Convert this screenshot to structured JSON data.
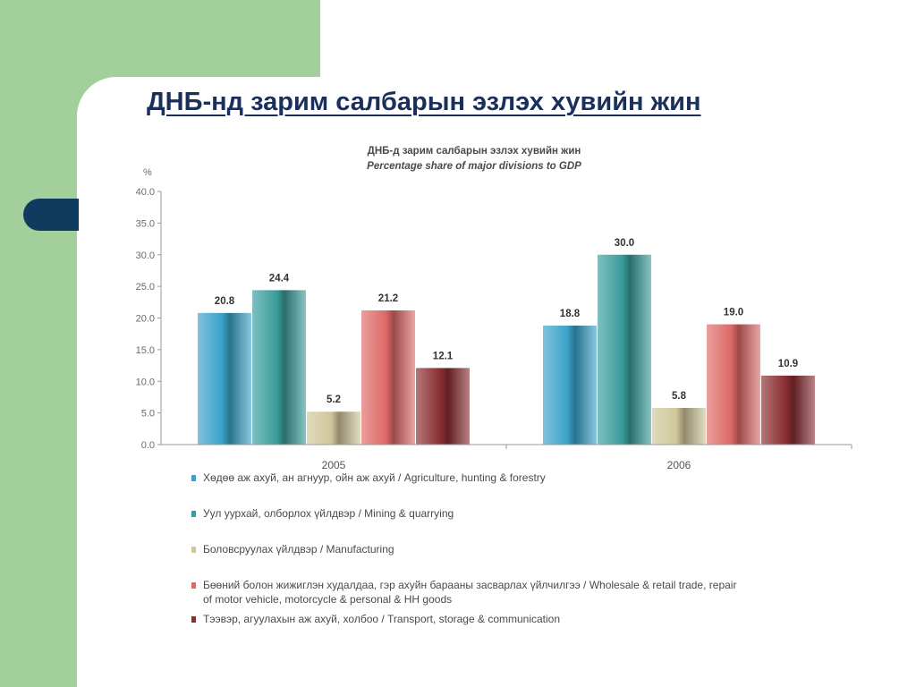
{
  "slide": {
    "title": "ДНБ-нд зарим салбарын эзлэх хувийн жин",
    "accent_colors": {
      "panel": "#a3cf9d",
      "tab": "#0e3b5e",
      "title": "#1b2f5b"
    }
  },
  "chart_data": {
    "type": "bar",
    "title": "ДНБ-д зарим салбарын эзлэх хувийн жин",
    "subtitle": "Percentage share of major divisions to GDP",
    "ylabel": "%",
    "ylim": [
      0,
      40
    ],
    "yticks": [
      "0.0",
      "5.0",
      "10.0",
      "15.0",
      "20.0",
      "25.0",
      "30.0",
      "35.0",
      "40.0"
    ],
    "categories": [
      "2005",
      "2006"
    ],
    "legend_position": "bottom",
    "grid": false,
    "series": [
      {
        "name": "Хөдөө аж ахуй, ан агнуур, ойн аж ахуй  / Agriculture, hunting & forestry",
        "values": [
          20.8,
          18.8
        ],
        "labels": [
          "20.8",
          "18.8"
        ],
        "color": "#3aa3c9"
      },
      {
        "name": "Уул уурхай, олборлох үйлдвэр / Mining & quarrying",
        "values": [
          24.4,
          30.0
        ],
        "labels": [
          "24.4",
          "30.0"
        ],
        "color": "#3a9d9c"
      },
      {
        "name": "Боловсруулах үйлдвэр / Manufacturing",
        "values": [
          5.2,
          5.8
        ],
        "labels": [
          "5.2",
          "5.8"
        ],
        "color": "#cfc79a"
      },
      {
        "name_lines": [
          "Бөөний болон жижиглэн худалдаа, гэр ахуйн барааны засварлах үйлчилгээ / Wholesale & retail trade, repair",
          "of motor vehicle, motorcycle & personal & HH goods"
        ],
        "values": [
          21.2,
          19.0
        ],
        "labels": [
          "21.2",
          "19.0"
        ],
        "color": "#de6a68"
      },
      {
        "name": "Тээвэр, агуулахын аж ахуй, холбоо /  Transport, storage & communication",
        "values": [
          12.1,
          10.9
        ],
        "labels": [
          "12.1",
          "10.9"
        ],
        "color": "#8a2e32"
      }
    ]
  }
}
